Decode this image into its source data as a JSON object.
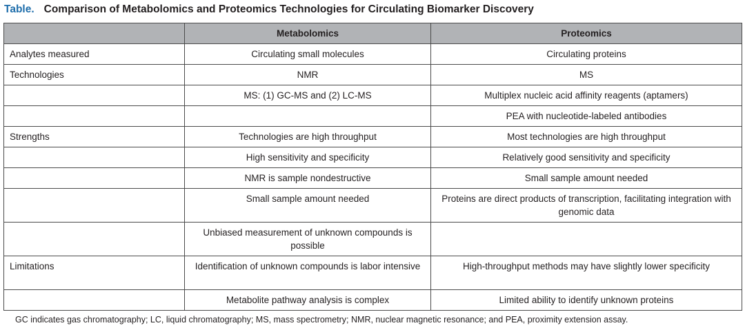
{
  "title": {
    "label": "Table.",
    "text": "Comparison of Metabolomics and Proteomics Technologies for Circulating Biomarker Discovery"
  },
  "columns": [
    "",
    "Metabolomics",
    "Proteomics"
  ],
  "rows": [
    [
      "Analytes measured",
      "Circulating small molecules",
      "Circulating proteins"
    ],
    [
      "Technologies",
      "NMR",
      "MS"
    ],
    [
      "",
      "MS: (1) GC-MS and (2) LC-MS",
      "Multiplex nucleic acid affinity reagents (aptamers)"
    ],
    [
      "",
      "",
      "PEA with nucleotide-labeled antibodies"
    ],
    [
      "Strengths",
      "Technologies are high throughput",
      "Most technologies are high throughput"
    ],
    [
      "",
      "High sensitivity and specificity",
      "Relatively good sensitivity and specificity"
    ],
    [
      "",
      "NMR is sample nondestructive",
      "Small sample amount needed"
    ],
    [
      "",
      "Small sample amount needed",
      "Proteins are direct products of transcription, facilitating integration with genomic data"
    ],
    [
      "",
      "Unbiased measurement of unknown compounds is possible",
      ""
    ],
    [
      "Limitations",
      "Identification of unknown compounds is labor intensive",
      "High-throughput methods may have slightly lower specificity"
    ],
    [
      "",
      "Metabolite pathway analysis is complex",
      "Limited ability to identify unknown proteins"
    ]
  ],
  "footnote": "GC indicates gas chromatography; LC, liquid chromatography; MS, mass spectrometry; NMR, nuclear magnetic resonance; and PEA, proximity extension assay."
}
